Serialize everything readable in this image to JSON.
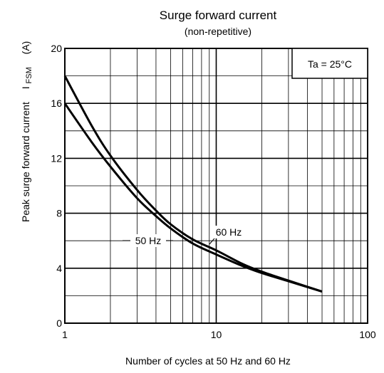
{
  "chart_data": {
    "type": "line",
    "title": "Surge forward current",
    "subtitle": "(non-repetitive)",
    "xlabel": "Number of cycles at 50 Hz and 60 Hz",
    "ylabel": "Peak surge forward current",
    "ylabel_symbol_main": "I",
    "ylabel_symbol_sub": "FSM",
    "ylabel_unit": "(A)",
    "x_scale": "log",
    "xlim": [
      1,
      100
    ],
    "ylim": [
      0,
      20
    ],
    "x_ticks": [
      1,
      10,
      100
    ],
    "x_tick_labels": [
      "1",
      "10",
      "100"
    ],
    "y_ticks": [
      0,
      4,
      8,
      12,
      16,
      20
    ],
    "y_tick_labels": [
      "0",
      "4",
      "8",
      "12",
      "16",
      "20"
    ],
    "grid": true,
    "condition_label": "Ta = 25°C",
    "series": [
      {
        "name": "60 Hz",
        "x": [
          1,
          1.5,
          2,
          3,
          4,
          5,
          7,
          10,
          15,
          20,
          30,
          50
        ],
        "y": [
          18.0,
          14.4,
          12.2,
          9.7,
          8.2,
          7.2,
          6.1,
          5.3,
          4.3,
          3.75,
          3.1,
          2.3
        ]
      },
      {
        "name": "50 Hz",
        "x": [
          1,
          1.5,
          2,
          3,
          4,
          5,
          7,
          10,
          15,
          20,
          30,
          50
        ],
        "y": [
          16.0,
          13.2,
          11.4,
          9.1,
          7.8,
          6.9,
          5.8,
          5.0,
          4.15,
          3.65,
          3.05,
          2.3
        ]
      }
    ]
  }
}
